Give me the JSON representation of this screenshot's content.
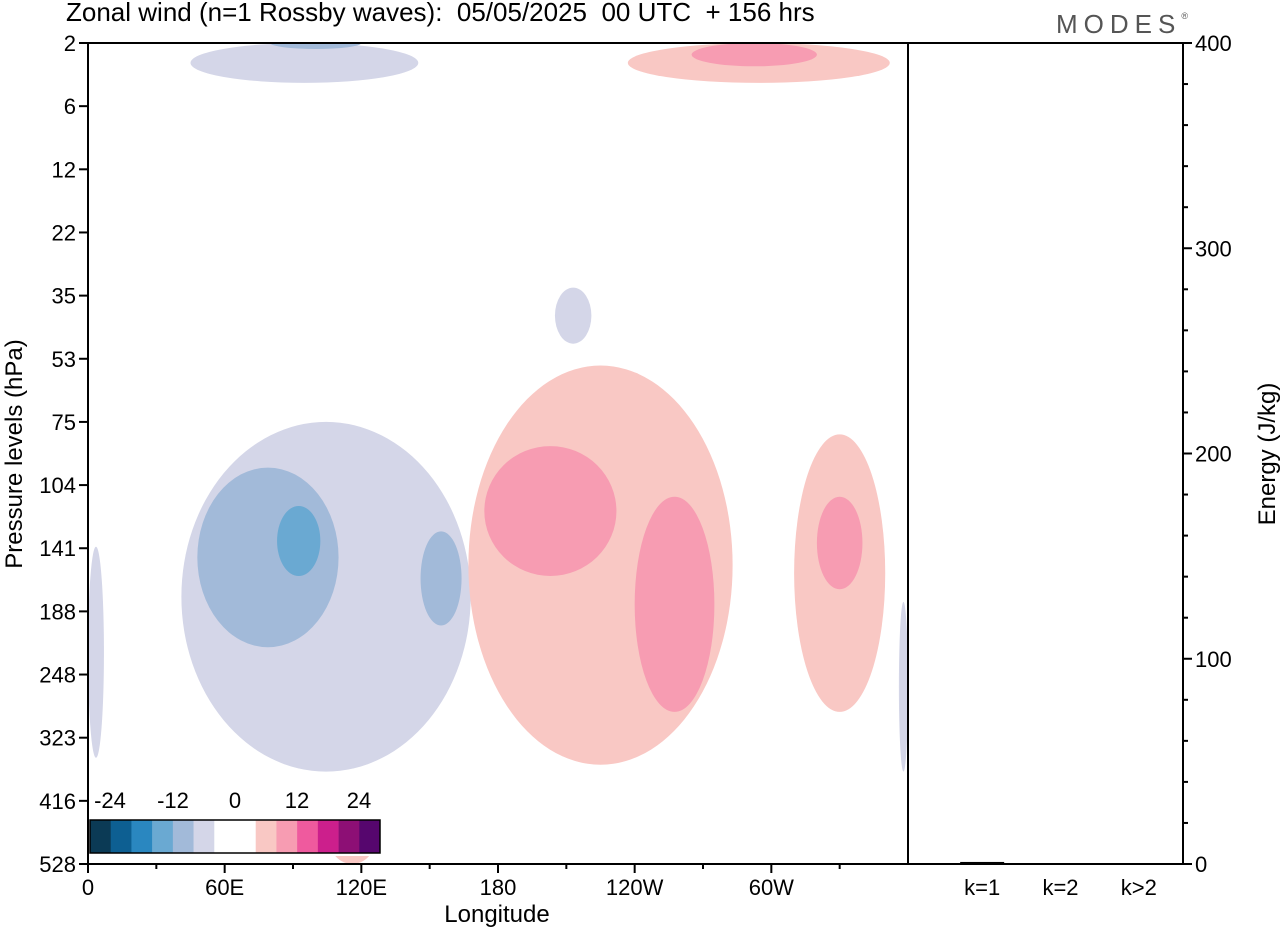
{
  "header": {
    "title": "Zonal wind (n=1 Rossby waves):  05/05/2025  00 UTC  + 156 hrs",
    "brand": "MODES",
    "brand_mark": "®"
  },
  "chart_data": [
    {
      "type": "heatmap",
      "xlabel": "Longitude",
      "ylabel": "Pressure levels (hPa)",
      "x_ticks": [
        "0",
        "60E",
        "120E",
        "180",
        "120W",
        "60W"
      ],
      "x_tick_values": [
        0,
        60,
        120,
        180,
        240,
        300
      ],
      "xlim": [
        0,
        360
      ],
      "y_ticks": [
        "2",
        "6",
        "12",
        "22",
        "35",
        "53",
        "75",
        "104",
        "141",
        "188",
        "248",
        "323",
        "416",
        "528"
      ],
      "colorbar": {
        "tick_labels": [
          "-24",
          "-12",
          "0",
          "12",
          "24"
        ],
        "colors": [
          "#0b3a55",
          "#0d5f92",
          "#2a87c0",
          "#6aa9d2",
          "#a2bad9",
          "#d4d6e8",
          "#ffffff",
          "#ffffff",
          "#f9c8c4",
          "#f79cb2",
          "#ef5a9e",
          "#cc1f8c",
          "#8d0f75",
          "#56066e"
        ]
      },
      "features": [
        {
          "sign": "negative",
          "level": 1,
          "region": "upper stratosphere",
          "lon": [
            45,
            145
          ],
          "hPa": [
            2,
            4
          ]
        },
        {
          "sign": "negative",
          "level": 2,
          "region": "upper stratosphere core",
          "lon": [
            80,
            120
          ],
          "hPa": [
            2,
            2
          ]
        },
        {
          "sign": "negative",
          "level": 1,
          "region": "isolated patch",
          "lon": [
            205,
            221
          ],
          "hPa": [
            33,
            48
          ]
        },
        {
          "sign": "negative",
          "level": 1,
          "region": "troposphere west",
          "lon": [
            0,
            7
          ],
          "hPa": [
            140,
            350
          ]
        },
        {
          "sign": "negative",
          "level": 1,
          "region": "troposphere",
          "lon": [
            41,
            168
          ],
          "hPa": [
            75,
            370
          ]
        },
        {
          "sign": "negative",
          "level": 2,
          "region": "troposphere",
          "lon": [
            48,
            110
          ],
          "hPa": [
            95,
            220
          ]
        },
        {
          "sign": "negative",
          "level": 3,
          "region": "troposphere core",
          "lon": [
            83,
            102
          ],
          "hPa": [
            115,
            160
          ]
        },
        {
          "sign": "negative",
          "level": 2,
          "region": "troposphere",
          "lon": [
            146,
            164
          ],
          "hPa": [
            130,
            200
          ]
        },
        {
          "sign": "negative",
          "level": 1,
          "region": "troposphere east edge",
          "lon": [
            356,
            360
          ],
          "hPa": [
            180,
            370
          ]
        },
        {
          "sign": "positive",
          "level": 1,
          "region": "upper stratosphere",
          "lon": [
            237,
            352
          ],
          "hPa": [
            2,
            4
          ]
        },
        {
          "sign": "positive",
          "level": 2,
          "region": "upper stratosphere core",
          "lon": [
            265,
            320
          ],
          "hPa": [
            2,
            3
          ]
        },
        {
          "sign": "positive",
          "level": 1,
          "region": "troposphere",
          "lon": [
            167,
            283
          ],
          "hPa": [
            55,
            360
          ]
        },
        {
          "sign": "positive",
          "level": 2,
          "region": "troposphere",
          "lon": [
            174,
            232
          ],
          "hPa": [
            85,
            160
          ]
        },
        {
          "sign": "positive",
          "level": 2,
          "region": "troposphere",
          "lon": [
            240,
            275
          ],
          "hPa": [
            110,
            290
          ]
        },
        {
          "sign": "positive",
          "level": 1,
          "region": "troposphere",
          "lon": [
            310,
            350
          ],
          "hPa": [
            80,
            290
          ]
        },
        {
          "sign": "positive",
          "level": 2,
          "region": "troposphere",
          "lon": [
            320,
            340
          ],
          "hPa": [
            110,
            170
          ]
        },
        {
          "sign": "positive",
          "level": 1,
          "region": "surface patch",
          "lon": [
            106,
            126
          ],
          "hPa": [
            440,
            528
          ]
        }
      ]
    },
    {
      "type": "bar",
      "ylabel": "Energy (J/kg)",
      "categories": [
        "k=1",
        "k=2",
        "k>2"
      ],
      "values": [
        1,
        0,
        0
      ],
      "ylim": [
        0,
        400
      ],
      "y_ticks": [
        "0",
        "100",
        "200",
        "300",
        "400"
      ]
    }
  ]
}
